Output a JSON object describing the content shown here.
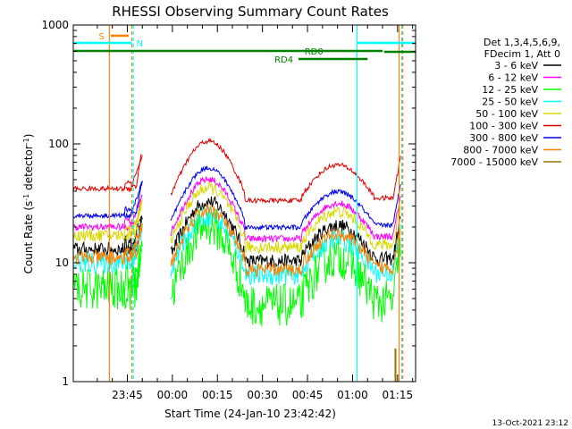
{
  "chart_data": {
    "type": "line",
    "title": "RHESSI Observing Summary Count Rates",
    "xlabel": "Start Time (24-Jan-10 23:42:42)",
    "ylabel": "Count Rate (s",
    "ylabel_sup": "-1",
    "ylabel_tail": " detector",
    "ylabel_tail_sup": "-1",
    "ylabel_close": ")",
    "yscale": "log",
    "ylim": [
      1,
      1000
    ],
    "xlim_minutes": [
      -18,
      96
    ],
    "x_ticks": [
      {
        "minute": 0,
        "label": "23:45"
      },
      {
        "minute": 15,
        "label": "00:00"
      },
      {
        "minute": 30,
        "label": "00:15"
      },
      {
        "minute": 45,
        "label": "00:30"
      },
      {
        "minute": 60,
        "label": "00:45"
      },
      {
        "minute": 75,
        "label": "01:00"
      },
      {
        "minute": 90,
        "label": "01:15"
      }
    ],
    "y_ticks": [
      {
        "value": 1,
        "label": "1"
      },
      {
        "value": 10,
        "label": "10"
      },
      {
        "value": 100,
        "label": "100"
      },
      {
        "value": 1000,
        "label": "1000"
      }
    ],
    "legend_header": [
      "Det 1,3,4,5,6,9,",
      "FDecim 1, Att 0"
    ],
    "series": [
      {
        "name": "3 - 6 keV",
        "color": "#000000"
      },
      {
        "name": "6 - 12 keV",
        "color": "#ff00ff"
      },
      {
        "name": "12 - 25 keV",
        "color": "#00ff00"
      },
      {
        "name": "25 - 50 keV",
        "color": "#00ffff"
      },
      {
        "name": "50 - 100 keV",
        "color": "#d8d800"
      },
      {
        "name": "100 - 300 keV",
        "color": "#dd0000"
      },
      {
        "name": "300 - 800 keV",
        "color": "#0000ee"
      },
      {
        "name": "800 - 7000 keV",
        "color": "#ff8000"
      },
      {
        "name": "7000 - 15000 keV",
        "color": "#9a7000"
      }
    ],
    "flags": {
      "S": {
        "label": "S",
        "color": "#ff8000"
      },
      "N": {
        "label": "N",
        "color": "#00ffff"
      },
      "RD0": {
        "label": "RD0",
        "color": "#008000"
      },
      "RD4": {
        "label": "RD4",
        "color": "#008000"
      }
    },
    "grid": false,
    "legend_position": "right"
  },
  "footer": {
    "timestamp": "13-Oct-2021 23:12"
  }
}
